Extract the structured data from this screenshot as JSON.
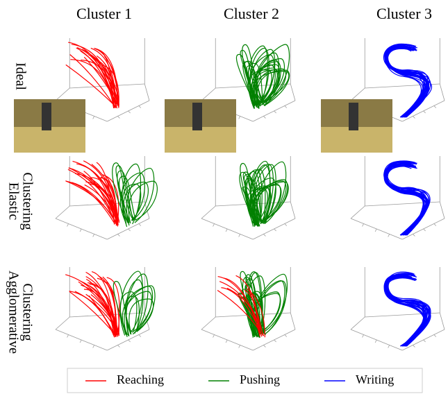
{
  "columns": [
    "Cluster 1",
    "Cluster 2",
    "Cluster 3"
  ],
  "rows": [
    [
      "Ideal"
    ],
    [
      "Elastic",
      "Clustering"
    ],
    [
      "Agglomerative",
      "Clustering"
    ]
  ],
  "legend": [
    {
      "label": "Reaching",
      "color": "#ff0000"
    },
    {
      "label": "Pushing",
      "color": "#008000"
    },
    {
      "label": "Writing",
      "color": "#0000ff"
    }
  ]
}
